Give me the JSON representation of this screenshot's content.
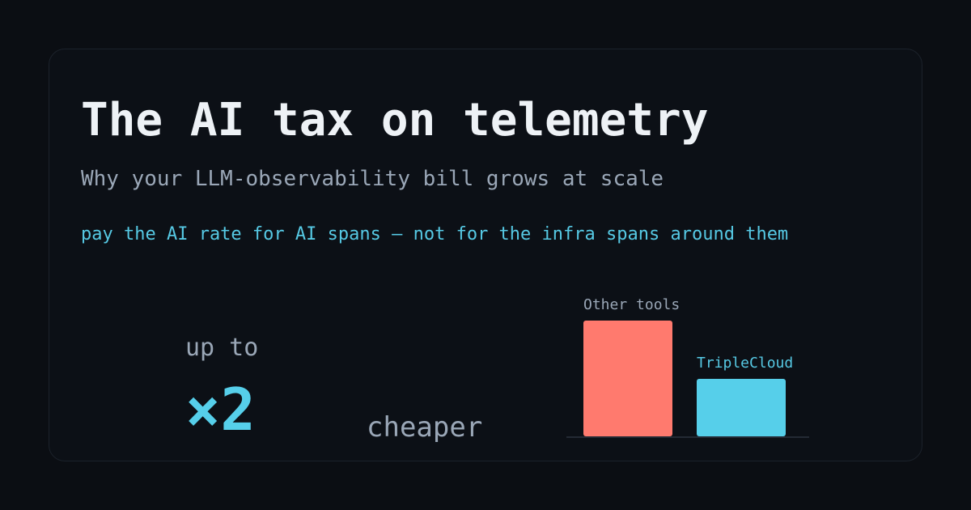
{
  "card": {
    "title": "The AI tax on telemetry",
    "subtitle": "Why your LLM-observability bill grows at scale",
    "tagline": "pay the AI rate for AI spans — not for the infra spans around them"
  },
  "stat": {
    "prefix": "up to",
    "value": "×2",
    "suffix": "cheaper"
  },
  "colors": {
    "background": "#0b0e13",
    "accent": "#56cfea",
    "competitor": "#ff7a6e",
    "muted_text": "#9aa7b7"
  },
  "chart_data": {
    "type": "bar",
    "categories": [
      "Other tools",
      "TripleCloud"
    ],
    "values": [
      2,
      1
    ],
    "title": "",
    "xlabel": "",
    "ylabel": "",
    "grid": false,
    "colors": [
      "#ff7a6e",
      "#56cfea"
    ],
    "label_colors": [
      "#9aa7b7",
      "#56c9e4"
    ]
  }
}
